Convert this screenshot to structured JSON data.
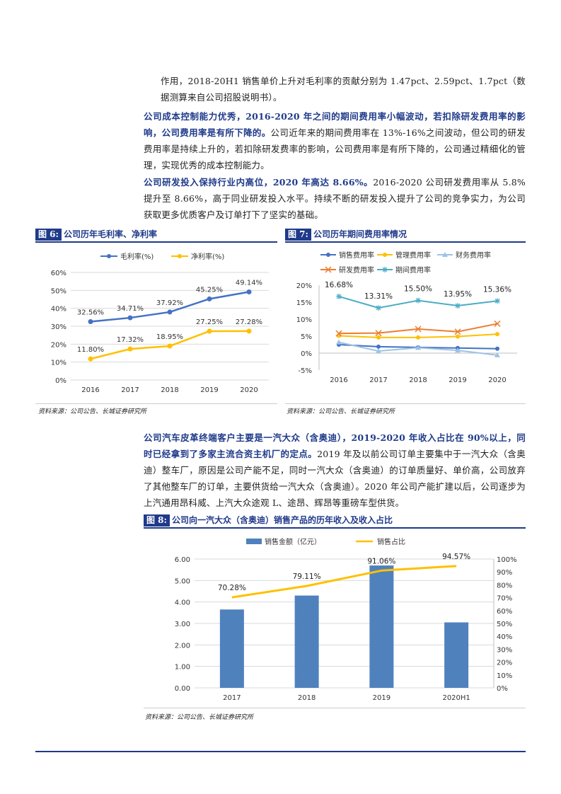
{
  "para0": "作用，2018-20H1 销售单价上升对毛利率的贡献分别为 1.47pct、2.59pct、1.7pct（数据测算来自公司招股说明书）。",
  "para1_bold": "公司成本控制能力优秀，2016-2020 年之间的期间费用率小幅波动，若扣除研发费用率的影响，公司费用率是有所下降的。",
  "para1_rest": "公司近年来的期间费用率在 13%-16%之间波动，但公司的研发费用率是持续上升的，若扣除研发费率的影响，公司费用率是有所下降的，公司通过精细化的管理，实现优秀的成本控制能力。",
  "para2_bold": "公司研发投入保持行业内高位，2020 年高达 8.66%。",
  "para2_rest": "2016-2020 公司研发费用率从 5.8%提升至 8.66%，高于同业研发投入水平。持续不断的研发投入提升了公司的竞争实力，为公司获取更多优质客户及订单打下了坚实的基础。",
  "para3_bold": "公司汽车皮革终端客户主要是一汽大众（含奥迪），2019-2020 年收入占比在 90%以上，同时已经拿到了多家主流合资主机厂的定点。",
  "para3_rest": "2019 年及以前公司订单主要集中于一汽大众（含奥迪）整车厂，原因是公司产能不足，同时一汽大众（含奥迪）的订单质量好、单价高，公司放弃了其他整车厂的订单，主要供货给一汽大众（含奥迪）。2020 年公司产能扩建以后，公司逐步为上汽通用昂科威、上汽大众途观 L、途昂、辉昂等重磅车型供货。",
  "fig6": {
    "tag": "图 6:",
    "title": "公司历年毛利率、净利率",
    "source": "资料来源：公司公告、长城证券研究所"
  },
  "fig7": {
    "tag": "图 7:",
    "title": "公司历年期间费用率情况",
    "source": "资料来源：公司公告、长城证券研究所"
  },
  "fig8": {
    "tag": "图 8:",
    "title": "公司向一汽大众（含奥迪）销售产品的历年收入及收入占比",
    "source": "资料来源：公司公告、长城证券研究所"
  },
  "chart_data": [
    {
      "type": "line",
      "categories": [
        "2016",
        "2017",
        "2018",
        "2019",
        "2020"
      ],
      "series": [
        {
          "name": "毛利率(%)",
          "color": "#4472c4",
          "values": [
            32.56,
            34.71,
            37.92,
            45.25,
            49.14
          ],
          "labels": [
            "32.56%",
            "34.71%",
            "37.92%",
            "45.25%",
            "49.14%"
          ]
        },
        {
          "name": "净利率(%)",
          "color": "#ffc000",
          "values": [
            11.8,
            17.32,
            18.95,
            27.25,
            27.28
          ],
          "labels": [
            "11.80%",
            "17.32%",
            "18.95%",
            "27.25%",
            "27.28%"
          ]
        }
      ],
      "ylim": [
        0,
        60
      ],
      "yticks": [
        "0%",
        "10%",
        "20%",
        "30%",
        "40%",
        "50%",
        "60%"
      ],
      "grid": true,
      "legend": "top"
    },
    {
      "type": "line",
      "categories": [
        "2016",
        "2017",
        "2018",
        "2019",
        "2020"
      ],
      "series": [
        {
          "name": "销售费用率",
          "color": "#4472c4",
          "marker": "circle",
          "values": [
            2.5,
            1.9,
            1.7,
            1.5,
            1.3
          ]
        },
        {
          "name": "管理费用率",
          "color": "#ffc000",
          "marker": "circle",
          "values": [
            5.1,
            4.6,
            4.6,
            4.9,
            5.6
          ]
        },
        {
          "name": "财务费用率",
          "color": "#9dc3e6",
          "marker": "triangle",
          "values": [
            3.2,
            0.6,
            1.6,
            0.8,
            -0.6
          ]
        },
        {
          "name": "研发费用率",
          "color": "#ed7d31",
          "marker": "x",
          "values": [
            5.8,
            5.9,
            7.1,
            6.3,
            8.66
          ]
        },
        {
          "name": "期间费用率",
          "color": "#4bacc6",
          "marker": "asterisk",
          "values": [
            16.68,
            13.31,
            15.5,
            13.95,
            15.36
          ],
          "labels": [
            "16.68%",
            "13.31%",
            "15.50%",
            "13.95%",
            "15.36%"
          ]
        }
      ],
      "ylim": [
        -5,
        20
      ],
      "yticks": [
        "-5%",
        "0%",
        "5%",
        "10%",
        "15%",
        "20%"
      ],
      "grid": false,
      "legend": "top"
    },
    {
      "type": "bar+line",
      "categories": [
        "2017",
        "2018",
        "2019",
        "2020H1"
      ],
      "series": [
        {
          "name": "销售金额（亿元）",
          "color": "#4f81bd",
          "values": [
            3.65,
            4.3,
            5.7,
            3.05
          ],
          "axis": "left"
        },
        {
          "name": "销售占比",
          "color": "#ffc000",
          "values": [
            70.28,
            79.11,
            91.06,
            94.57
          ],
          "labels": [
            "70.28%",
            "79.11%",
            "91.06%",
            "94.57%"
          ],
          "axis": "right"
        }
      ],
      "ylim": [
        0,
        6
      ],
      "yticks": [
        "0.00",
        "1.00",
        "2.00",
        "3.00",
        "4.00",
        "5.00",
        "6.00"
      ],
      "y2lim": [
        0,
        100
      ],
      "y2ticks": [
        "0%",
        "10%",
        "20%",
        "30%",
        "40%",
        "50%",
        "60%",
        "70%",
        "80%",
        "90%",
        "100%"
      ],
      "legend": "top"
    }
  ]
}
